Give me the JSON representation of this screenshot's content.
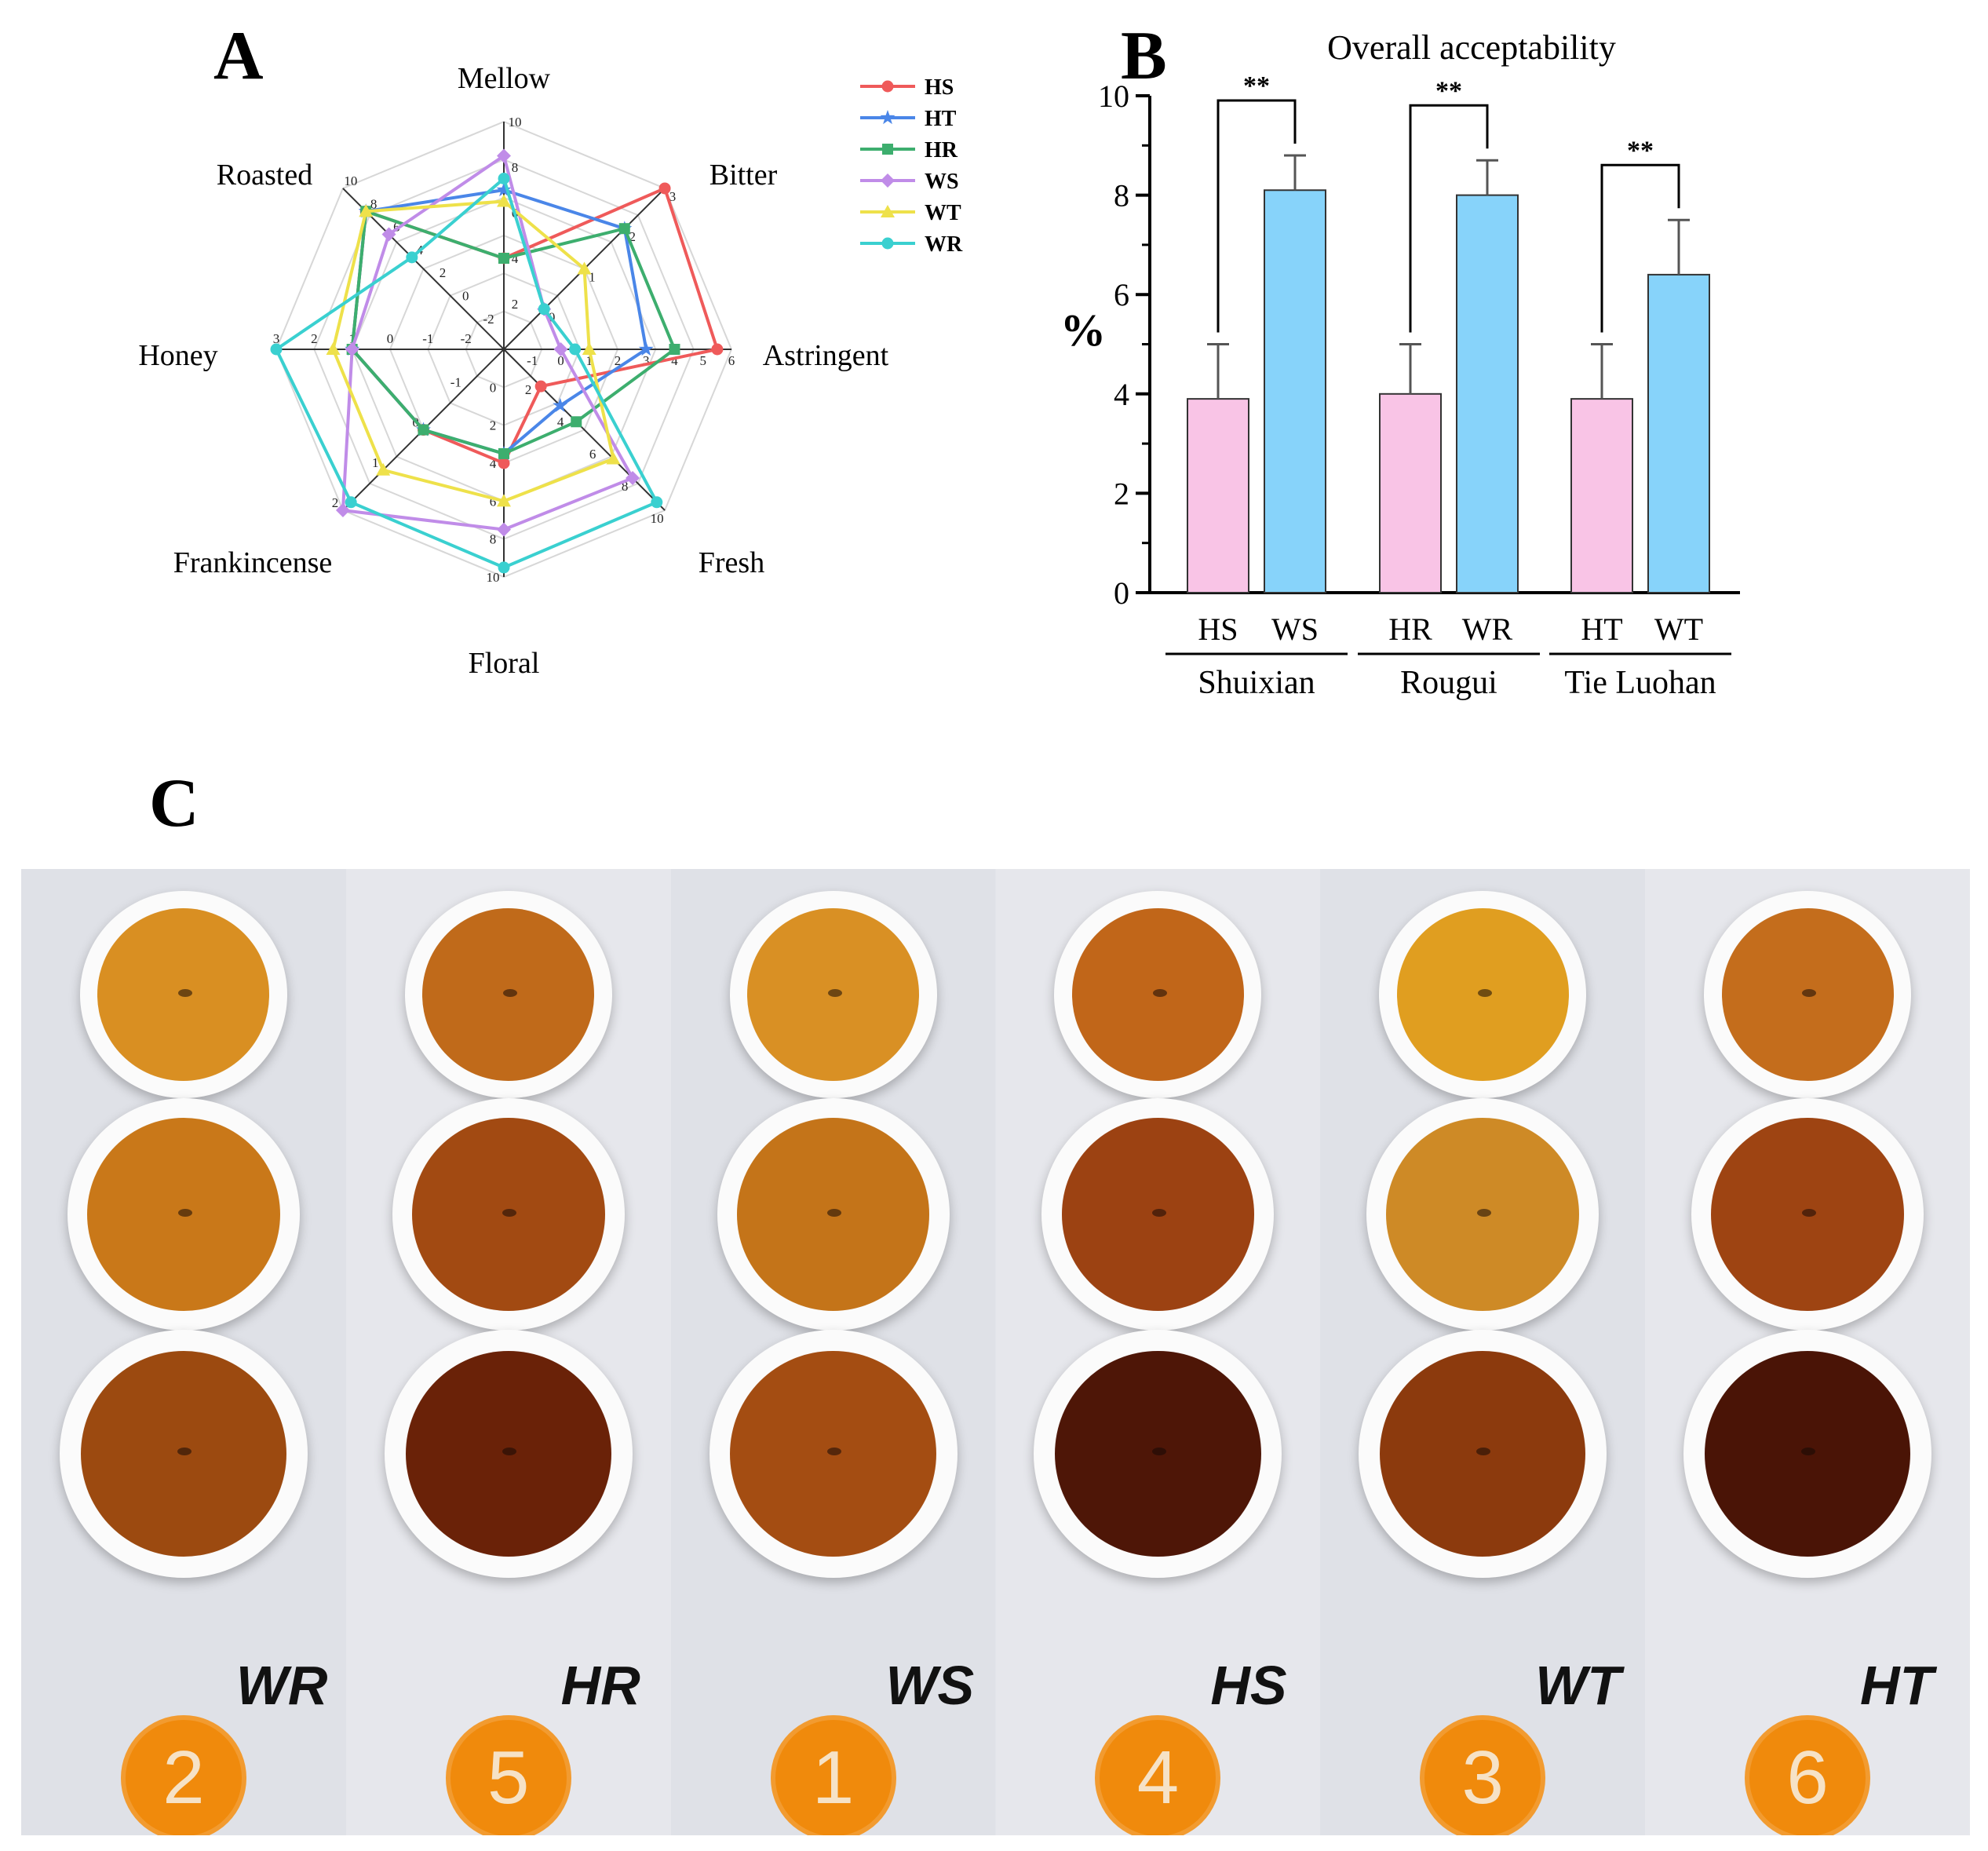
{
  "panels": {
    "a": "A",
    "b": "B",
    "c": "C"
  },
  "chart_data": [
    {
      "type": "radar",
      "axes": [
        {
          "name": "Mellow",
          "ticks": [
            "2",
            "4",
            "6",
            "8",
            "10"
          ]
        },
        {
          "name": "Bitter",
          "ticks": [
            "0",
            "1",
            "2",
            "3"
          ]
        },
        {
          "name": "Astringent",
          "ticks": [
            "-1",
            "0",
            "1",
            "2",
            "3",
            "4",
            "5",
            "6"
          ]
        },
        {
          "name": "Fresh",
          "ticks": [
            "2",
            "4",
            "6",
            "8",
            "10"
          ]
        },
        {
          "name": "Floral",
          "ticks": [
            "0",
            "2",
            "4",
            "6",
            "8",
            "10"
          ]
        },
        {
          "name": "Frankincense",
          "ticks": [
            "-1",
            "0",
            "1",
            "2"
          ]
        },
        {
          "name": "Honey",
          "ticks": [
            "-2",
            "-1",
            "0",
            "1",
            "2",
            "3"
          ]
        },
        {
          "name": "Roasted",
          "ticks": [
            "-2",
            "0",
            "2",
            "4",
            "6",
            "8",
            "10"
          ]
        }
      ],
      "series": [
        {
          "name": "HS",
          "color": "#ef5a5a",
          "marker": "circle",
          "values": [
            4.0,
            3.0,
            5.5,
            2.3,
            4.0,
            0.0,
            1.0,
            8.0
          ]
        },
        {
          "name": "HT",
          "color": "#4a86e8",
          "marker": "star",
          "values": [
            7.0,
            2.0,
            3.0,
            3.5,
            3.5,
            0.0,
            1.0,
            8.0
          ]
        },
        {
          "name": "HR",
          "color": "#3dae6e",
          "marker": "square",
          "values": [
            4.0,
            2.0,
            4.0,
            4.5,
            3.5,
            0.0,
            1.0,
            8.0
          ]
        },
        {
          "name": "WS",
          "color": "#c08ce8",
          "marker": "diamond",
          "values": [
            8.5,
            0.0,
            0.0,
            8.0,
            7.5,
            2.0,
            1.0,
            6.0
          ]
        },
        {
          "name": "WT",
          "color": "#eee14a",
          "marker": "triangle",
          "values": [
            6.5,
            1.0,
            1.0,
            6.8,
            6.0,
            1.0,
            1.5,
            8.0
          ]
        },
        {
          "name": "WR",
          "color": "#3ad0d0",
          "marker": "hexagon",
          "values": [
            7.5,
            0.0,
            0.5,
            9.5,
            9.5,
            1.8,
            3.0,
            4.0
          ]
        }
      ],
      "legend": "top-right"
    },
    {
      "type": "bar",
      "title": "Overall acceptability",
      "ylabel": "%",
      "ylim": [
        0,
        10
      ],
      "yticks": [
        "0",
        "2",
        "4",
        "6",
        "8",
        "10"
      ],
      "groups": [
        {
          "name": "Shuixian",
          "bars": [
            {
              "label": "HS",
              "value": 3.9,
              "err": 1.1,
              "color": "#f9c4e6"
            },
            {
              "label": "WS",
              "value": 8.1,
              "err": 0.7,
              "color": "#87d3fa"
            }
          ],
          "sig": "**"
        },
        {
          "name": "Rougui",
          "bars": [
            {
              "label": "HR",
              "value": 4.0,
              "err": 1.0,
              "color": "#f9c4e6"
            },
            {
              "label": "WR",
              "value": 8.0,
              "err": 0.7,
              "color": "#87d3fa"
            }
          ],
          "sig": "**"
        },
        {
          "name": "Tie Luohan",
          "bars": [
            {
              "label": "HT",
              "value": 3.9,
              "err": 1.1,
              "color": "#f9c4e6"
            },
            {
              "label": "WT",
              "value": 6.4,
              "err": 1.1,
              "color": "#87d3fa"
            }
          ],
          "sig": "**"
        }
      ],
      "grid": false
    }
  ],
  "photo": {
    "samples": [
      {
        "label": "WR",
        "number": "2",
        "colors": [
          "#d98f22",
          "#c97819",
          "#9c4a10"
        ]
      },
      {
        "label": "HR",
        "number": "5",
        "colors": [
          "#c06a1a",
          "#a24a12",
          "#6a2208"
        ]
      },
      {
        "label": "WS",
        "number": "1",
        "colors": [
          "#d99024",
          "#c47419",
          "#a44d12"
        ]
      },
      {
        "label": "HS",
        "number": "4",
        "colors": [
          "#c16619",
          "#9c4212",
          "#4e1607"
        ]
      },
      {
        "label": "WT",
        "number": "3",
        "colors": [
          "#e09e20",
          "#ce8a26",
          "#8c3a0d"
        ]
      },
      {
        "label": "HT",
        "number": "6",
        "colors": [
          "#c46d1c",
          "#9e4412",
          "#4a1406"
        ]
      }
    ]
  }
}
